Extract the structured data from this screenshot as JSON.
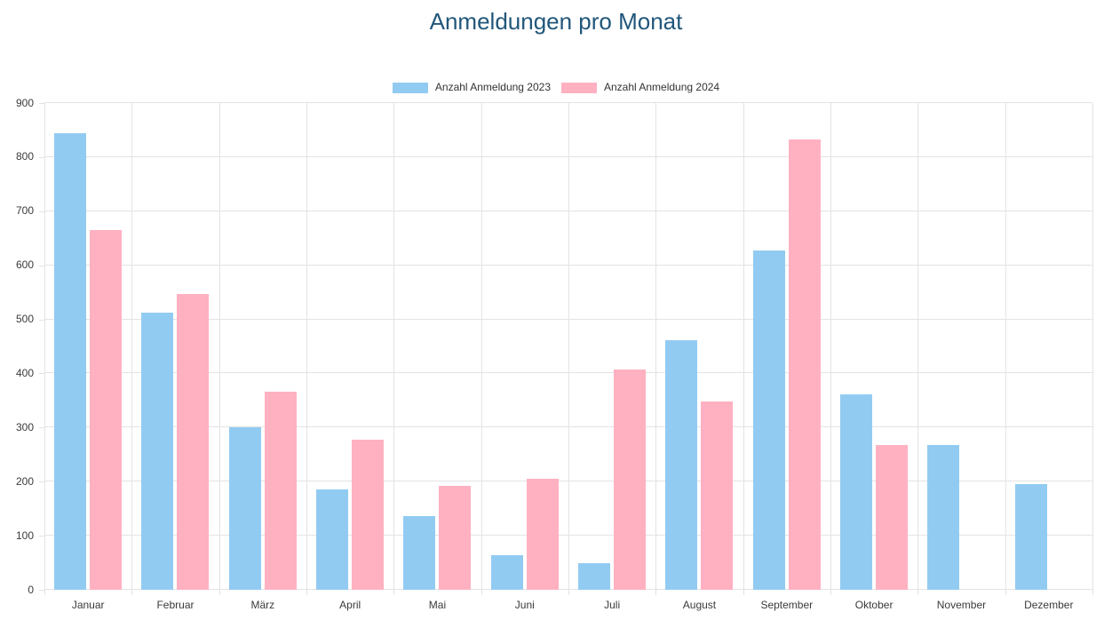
{
  "title": "Anmeldungen pro Monat",
  "colors": {
    "title_text": "#21577b",
    "grid": "#e3e3e3",
    "axis_text": "#3a3a3a",
    "series_2023": "#92cbf2",
    "series_2024": "#ffb1c1"
  },
  "chart_data": {
    "type": "bar",
    "title": "Anmeldungen pro Monat",
    "categories": [
      "Januar",
      "Februar",
      "März",
      "April",
      "Mai",
      "Juni",
      "Juli",
      "August",
      "September",
      "Oktober",
      "November",
      "Dezember"
    ],
    "series": [
      {
        "name": "Anzahl Anmeldung 2023",
        "color": "#92cbf2",
        "values": [
          845,
          512,
          300,
          185,
          137,
          64,
          49,
          462,
          627,
          362,
          267,
          195
        ]
      },
      {
        "name": "Anzahl Anmeldung 2024",
        "color": "#ffb1c1",
        "values": [
          665,
          547,
          366,
          277,
          193,
          206,
          408,
          348,
          832,
          268,
          0,
          0
        ]
      }
    ],
    "xlabel": "",
    "ylabel": "",
    "ylim": [
      0,
      900
    ],
    "ytick_step": 100,
    "ytick_labels": [
      "0",
      "100",
      "200",
      "300",
      "400",
      "500",
      "600",
      "700",
      "800",
      "900"
    ],
    "grid": "on",
    "legend_position": "top"
  }
}
